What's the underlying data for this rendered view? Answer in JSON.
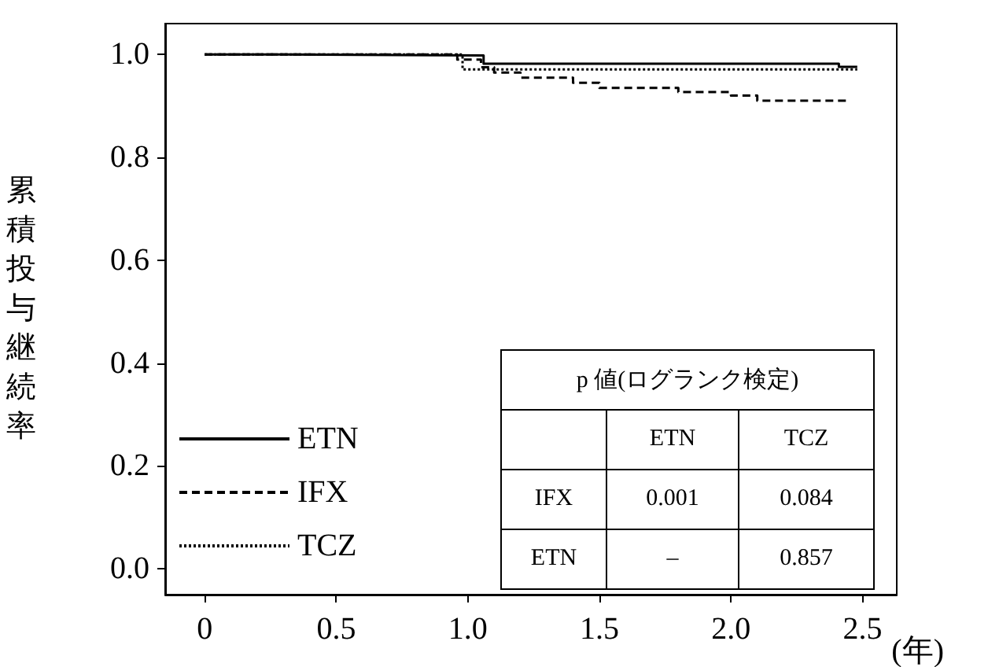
{
  "chart_data": {
    "type": "step",
    "ylabel": "累積投与継続率",
    "xlabel": "(年)",
    "xlim": [
      -0.15,
      2.63
    ],
    "xticks": [
      0,
      0.5,
      {
        "value": 1,
        "label": "1.0"
      },
      1.5,
      {
        "value": 2,
        "label": "2.0"
      },
      2.5
    ],
    "ylim": [
      -0.05,
      1.06
    ],
    "yticks": [
      {
        "value": 0,
        "label": "0.0"
      },
      0.2,
      0.4,
      0.6,
      0.8,
      {
        "value": 1,
        "label": "1.0"
      }
    ],
    "grid": false,
    "legend": "bottom left",
    "marker": "none",
    "series": [
      {
        "name": "ETN",
        "color": "#000000",
        "line_style": "solid",
        "x": [
          0,
          0.3,
          1.06,
          2.41,
          2.48
        ],
        "values": [
          1,
          0.998,
          0.982,
          0.976,
          0.976
        ]
      },
      {
        "name": "IFX",
        "color": "#000000",
        "line_style": "dashed",
        "x": [
          0,
          0.96,
          1.05,
          1.1,
          1.2,
          1.4,
          1.5,
          1.8,
          2.0,
          2.1,
          2.45
        ],
        "values": [
          1,
          0.99,
          0.975,
          0.965,
          0.955,
          0.945,
          0.935,
          0.927,
          0.92,
          0.91,
          0.91
        ]
      },
      {
        "name": "TCZ",
        "color": "#000000",
        "line_style": "dotted",
        "x": [
          0,
          0.98,
          2.48
        ],
        "values": [
          1,
          0.971,
          0.971
        ]
      }
    ],
    "annotations": [
      "p 値(ログランク検定)",
      "ETN",
      "TCZ",
      "IFX",
      "0.001",
      "0.084",
      "ETN",
      "–",
      "0.857"
    ]
  }
}
